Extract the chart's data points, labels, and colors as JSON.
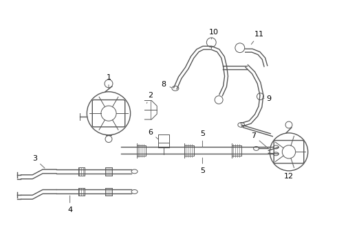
{
  "bg_color": "#ffffff",
  "line_color": "#555555",
  "label_color": "#000000",
  "fig_width": 4.9,
  "fig_height": 3.6,
  "dpi": 100
}
